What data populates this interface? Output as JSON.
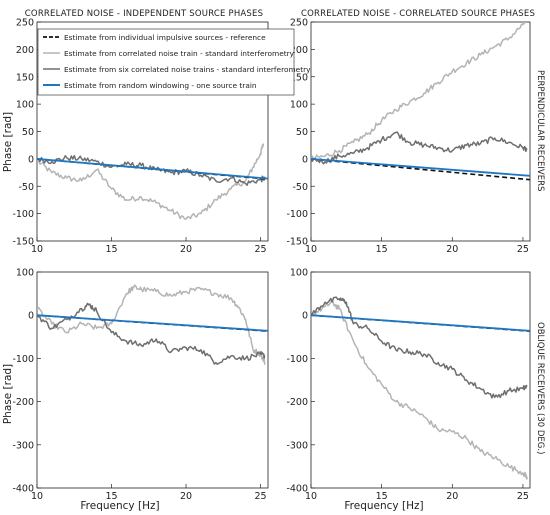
{
  "figure": {
    "col_titles": [
      "CORRELATED NOISE - INDEPENDENT SOURCE PHASES",
      "CORRELATED NOISE - CORRELATED SOURCE PHASES"
    ],
    "row_labels": [
      "PERPENDICULAR RECEIVERS",
      "OBLIQUE RECEIVERS (30 DEG.)"
    ],
    "xlabel": "Frequency  [Hz]",
    "ylabel": "Phase  [rad]",
    "legend": [
      {
        "label": "Estimate from individual impulsive sources  - reference",
        "color": "#111111",
        "style": "dashed"
      },
      {
        "label": "Estimate from correlated noise train - standard interferometry",
        "color": "#b4b4b4",
        "style": "solid"
      },
      {
        "label": "Estimate from six correlated noise trains  - standard interferometry",
        "color": "#6e6e6e",
        "style": "solid"
      },
      {
        "label": "Estimate from random windowing  - one source train",
        "color": "#1f77c4",
        "style": "solid"
      }
    ]
  },
  "chart_data": [
    {
      "type": "line",
      "title": "CORRELATED NOISE - INDEPENDENT SOURCE PHASES",
      "xlabel": "",
      "ylabel": "Phase  [rad]",
      "xlim": [
        10,
        25.5
      ],
      "ylim": [
        -150,
        250
      ],
      "xticks": [
        "10",
        "15",
        "20",
        "25"
      ],
      "yticks": [
        "-150",
        "-100",
        "-50",
        "0",
        "50",
        "100",
        "150",
        "200",
        "250"
      ],
      "series": [
        {
          "name": "Estimate from correlated noise train - standard interferometry",
          "color": "#b4b4b4",
          "x": [
            10,
            11,
            12,
            13,
            14,
            15,
            16,
            17,
            18,
            19,
            20,
            21,
            22,
            23,
            24,
            24.5,
            25,
            25.2
          ],
          "y": [
            -3,
            -25,
            -35,
            -40,
            -20,
            -55,
            -75,
            -70,
            -80,
            -95,
            -110,
            -100,
            -75,
            -55,
            -40,
            -15,
            10,
            28
          ]
        },
        {
          "name": "Estimate from six correlated noise trains  - standard interferometry",
          "color": "#6e6e6e",
          "x": [
            10,
            11,
            12,
            13,
            14,
            15,
            16,
            17,
            18,
            19,
            20,
            21,
            22,
            23,
            24,
            25,
            25.3
          ],
          "y": [
            0,
            -5,
            2,
            0,
            -5,
            -15,
            -10,
            -12,
            -20,
            -25,
            -22,
            -30,
            -40,
            -35,
            -45,
            -38,
            -35
          ]
        },
        {
          "name": "Estimate from individual impulsive sources  - reference",
          "color": "#111111",
          "x": [
            10,
            25.5
          ],
          "y": [
            0,
            -37
          ]
        },
        {
          "name": "Estimate from random windowing  - one source train",
          "color": "#1f77c4",
          "x": [
            10,
            25.5
          ],
          "y": [
            0,
            -36
          ]
        }
      ]
    },
    {
      "type": "line",
      "title": "CORRELATED NOISE - CORRELATED SOURCE PHASES",
      "xlabel": "",
      "ylabel": "",
      "xlim": [
        10,
        25.5
      ],
      "ylim": [
        -150,
        250
      ],
      "xticks": [
        "10",
        "15",
        "20",
        "25"
      ],
      "yticks": [
        "-150",
        "-100",
        "-50",
        "0",
        "50",
        "100",
        "150",
        "200",
        "250"
      ],
      "series": [
        {
          "name": "Estimate from correlated noise train - standard interferometry",
          "color": "#b4b4b4",
          "x": [
            10,
            11,
            12,
            13,
            14,
            15,
            16,
            17,
            18,
            19,
            20,
            21,
            22,
            23,
            24,
            25,
            25.3
          ],
          "y": [
            0,
            5,
            15,
            30,
            45,
            70,
            90,
            105,
            120,
            140,
            160,
            175,
            190,
            205,
            220,
            245,
            255
          ]
        },
        {
          "name": "Estimate from six correlated noise trains  - standard interferometry",
          "color": "#6e6e6e",
          "x": [
            10,
            11,
            12,
            13,
            14,
            15,
            16,
            17,
            18,
            19,
            20,
            21,
            22,
            23,
            24,
            25,
            25.3
          ],
          "y": [
            0,
            -5,
            5,
            10,
            20,
            35,
            48,
            30,
            25,
            20,
            15,
            25,
            28,
            38,
            30,
            20,
            18
          ]
        },
        {
          "name": "Estimate from individual impulsive sources  - reference",
          "color": "#111111",
          "x": [
            10,
            25.5
          ],
          "y": [
            0,
            -38
          ]
        },
        {
          "name": "Estimate from random windowing  - one source train",
          "color": "#1f77c4",
          "x": [
            10,
            25.5
          ],
          "y": [
            0,
            -31
          ]
        }
      ]
    },
    {
      "type": "line",
      "title": "",
      "xlabel": "Frequency  [Hz]",
      "ylabel": "Phase  [rad]",
      "xlim": [
        10,
        25.5
      ],
      "ylim": [
        -400,
        100
      ],
      "xticks": [
        "10",
        "15",
        "20",
        "25"
      ],
      "yticks": [
        "-400",
        "-300",
        "-200",
        "-100",
        "0",
        "100"
      ],
      "series": [
        {
          "name": "Estimate from correlated noise train - standard interferometry",
          "color": "#b4b4b4",
          "x": [
            10,
            11,
            12,
            13,
            14,
            15,
            16,
            16.5,
            17,
            18,
            19,
            20,
            21,
            22,
            23,
            23.5,
            24,
            24.5,
            25,
            25.3
          ],
          "y": [
            15,
            -20,
            -40,
            -20,
            -30,
            -20,
            50,
            65,
            60,
            55,
            45,
            55,
            60,
            50,
            40,
            20,
            -10,
            -80,
            -90,
            -110
          ]
        },
        {
          "name": "Estimate from six correlated noise trains  - standard interferometry",
          "color": "#6e6e6e",
          "x": [
            10,
            11,
            12,
            13,
            13.5,
            14,
            15,
            16,
            17,
            18,
            19,
            20,
            21,
            22,
            23,
            24,
            25,
            25.3
          ],
          "y": [
            0,
            -30,
            -10,
            15,
            25,
            10,
            -40,
            -60,
            -70,
            -55,
            -85,
            -75,
            -80,
            -110,
            -95,
            -100,
            -90,
            -95
          ]
        },
        {
          "name": "Estimate from individual impulsive sources  - reference",
          "color": "#111111",
          "x": [
            10,
            25.5
          ],
          "y": [
            0,
            -37
          ]
        },
        {
          "name": "Estimate from random windowing  - one source train",
          "color": "#1f77c4",
          "x": [
            10,
            25.5
          ],
          "y": [
            0,
            -36
          ]
        }
      ]
    },
    {
      "type": "line",
      "title": "",
      "xlabel": "Frequency  [Hz]",
      "ylabel": "",
      "xlim": [
        10,
        25.5
      ],
      "ylim": [
        -400,
        100
      ],
      "xticks": [
        "10",
        "15",
        "20",
        "25"
      ],
      "yticks": [
        "-400",
        "-300",
        "-200",
        "-100",
        "0",
        "100"
      ],
      "series": [
        {
          "name": "Estimate from correlated noise train - standard interferometry",
          "color": "#b4b4b4",
          "x": [
            10,
            11,
            11.5,
            12,
            13,
            14,
            15,
            16,
            17,
            18,
            19,
            20,
            21,
            22,
            23,
            24,
            25,
            25.3
          ],
          "y": [
            0,
            20,
            30,
            15,
            -60,
            -120,
            -160,
            -200,
            -215,
            -235,
            -265,
            -270,
            -285,
            -315,
            -330,
            -350,
            -365,
            -375
          ]
        },
        {
          "name": "Estimate from six correlated noise trains  - standard interferometry",
          "color": "#6e6e6e",
          "x": [
            10,
            11,
            12,
            12.5,
            13,
            14,
            15,
            16,
            17,
            18,
            19,
            20,
            21,
            22,
            23,
            24,
            25,
            25.3
          ],
          "y": [
            0,
            30,
            38,
            30,
            -20,
            -30,
            -60,
            -80,
            -85,
            -90,
            -110,
            -125,
            -150,
            -170,
            -190,
            -175,
            -170,
            -165
          ]
        },
        {
          "name": "Estimate from individual impulsive sources  - reference",
          "color": "#111111",
          "x": [
            10,
            25.5
          ],
          "y": [
            0,
            -37
          ]
        },
        {
          "name": "Estimate from random windowing  - one source train",
          "color": "#1f77c4",
          "x": [
            10,
            25.5
          ],
          "y": [
            0,
            -36
          ]
        }
      ]
    }
  ]
}
